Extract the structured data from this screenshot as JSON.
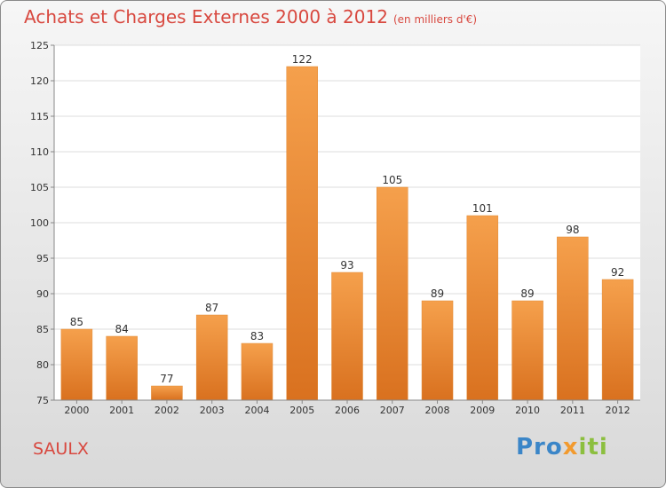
{
  "header": {
    "title": "Achats et Charges Externes 2000 à 2012",
    "unit": "(en milliers d'€)"
  },
  "footer": {
    "commune": "SAULX",
    "logo_text": "Proxiti",
    "logo_parts": [
      "Pro",
      "x",
      "iti"
    ],
    "logo_colors": [
      "#3b86c8",
      "#f29a2e",
      "#8cbf3f"
    ]
  },
  "chart_data": {
    "type": "bar",
    "title": "Achats et Charges Externes 2000 à 2012",
    "subtitle": "(en milliers d'€)",
    "xlabel": "",
    "ylabel": "",
    "categories": [
      "2000",
      "2001",
      "2002",
      "2003",
      "2004",
      "2005",
      "2006",
      "2007",
      "2008",
      "2009",
      "2010",
      "2011",
      "2012"
    ],
    "values": [
      85,
      84,
      77,
      87,
      83,
      122,
      93,
      105,
      89,
      101,
      89,
      98,
      92
    ],
    "ylim": [
      75,
      125
    ],
    "yticks": [
      75,
      80,
      85,
      90,
      95,
      100,
      105,
      110,
      115,
      120,
      125
    ],
    "grid": true,
    "bar_color": "#f5a04c",
    "bar_color_dark": "#d9711f"
  }
}
